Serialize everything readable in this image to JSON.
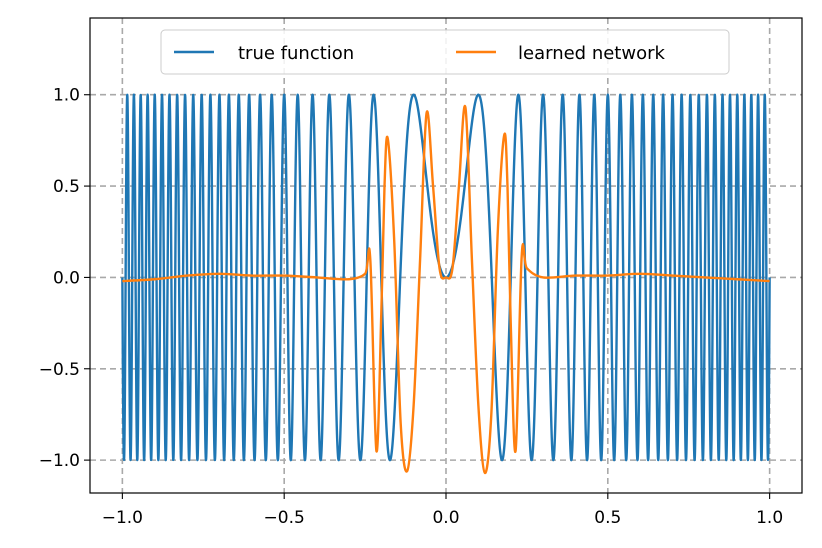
{
  "chart_data": {
    "type": "line",
    "title": "",
    "xlabel": "",
    "ylabel": "",
    "xlim": [
      -1.1,
      1.1
    ],
    "ylim": [
      -1.18,
      1.42
    ],
    "xticks": [
      -1.0,
      -0.5,
      0.0,
      0.5,
      1.0
    ],
    "xtick_labels": [
      "−1.0",
      "−0.5",
      "0.0",
      "0.5",
      "1.0"
    ],
    "yticks": [
      -1.0,
      -0.5,
      0.0,
      0.5,
      1.0
    ],
    "ytick_labels": [
      "−1.0",
      "−0.5",
      "0.0",
      "0.5",
      "1.0"
    ],
    "grid": true,
    "grid_style": "dashed",
    "legend_position": "top-center",
    "series": [
      {
        "name": "true function",
        "color": "#1f77b4",
        "description": "y = sin(50*pi*x^2), rapidly oscillating between -1 and 1",
        "x": [
          -1.0,
          -0.9,
          -0.8,
          -0.7,
          -0.6,
          -0.5,
          -0.4,
          -0.3,
          -0.2,
          -0.1,
          0.0,
          0.1,
          0.2,
          0.3,
          0.4,
          0.5,
          0.6,
          0.7,
          0.8,
          0.9,
          1.0
        ],
        "values": [
          0.0,
          1.0,
          -0.81,
          0.31,
          0.0,
          -1.0,
          0.0,
          -0.71,
          -1.0,
          0.71,
          0.0,
          0.71,
          -1.0,
          -0.71,
          0.0,
          -1.0,
          0.0,
          0.31,
          -0.81,
          1.0,
          0.0
        ]
      },
      {
        "name": "learned network",
        "color": "#ff7f0e",
        "x": [
          -1.0,
          -0.9,
          -0.8,
          -0.7,
          -0.6,
          -0.5,
          -0.4,
          -0.3,
          -0.25,
          -0.234,
          -0.215,
          -0.2,
          -0.19,
          -0.18,
          -0.16,
          -0.14,
          -0.12,
          -0.1,
          -0.08,
          -0.06,
          -0.04,
          -0.02,
          0.0,
          0.02,
          0.04,
          0.06,
          0.08,
          0.1,
          0.12,
          0.14,
          0.16,
          0.18,
          0.19,
          0.2,
          0.215,
          0.234,
          0.25,
          0.3,
          0.4,
          0.5,
          0.6,
          0.7,
          0.8,
          0.9,
          1.0
        ],
        "values": [
          -0.02,
          -0.01,
          0.01,
          0.02,
          0.01,
          0.01,
          0.0,
          -0.01,
          0.02,
          0.1,
          -0.95,
          -0.2,
          0.5,
          0.76,
          0.2,
          -0.8,
          -1.06,
          -0.7,
          0.1,
          0.9,
          0.5,
          0.05,
          0.0,
          0.05,
          0.5,
          0.93,
          0.1,
          -0.7,
          -1.07,
          -0.75,
          0.25,
          0.78,
          0.5,
          -0.25,
          -0.95,
          0.12,
          0.05,
          0.0,
          0.01,
          0.01,
          0.02,
          0.01,
          0.0,
          -0.01,
          -0.02
        ]
      }
    ]
  }
}
